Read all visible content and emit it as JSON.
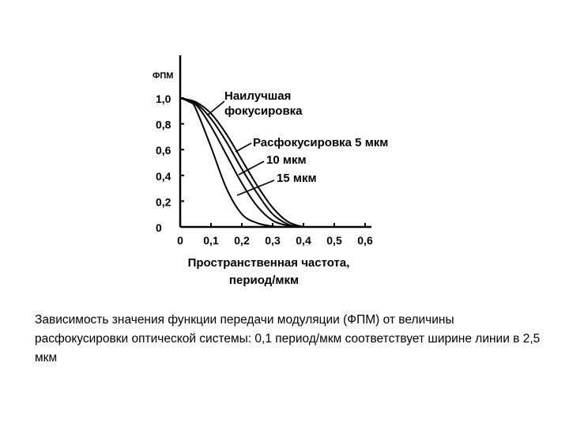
{
  "chart_data": {
    "type": "line",
    "ylabel": "ФПМ",
    "xlabel_line1": "Пространственная частота,",
    "xlabel_line2": "период/мкм",
    "xlim": [
      0,
      0.6
    ],
    "ylim": [
      0,
      1.0
    ],
    "x_ticks": [
      "0",
      "0,1",
      "0,2",
      "0,3",
      "0,4",
      "0,5",
      "0,6"
    ],
    "y_ticks": [
      "0",
      "0,2",
      "0,4",
      "0,6",
      "0,8",
      "1,0"
    ],
    "series": [
      {
        "name": "Наилучшая фокусировка",
        "x": [
          0,
          0.05,
          0.1,
          0.15,
          0.2,
          0.25,
          0.3,
          0.35,
          0.4
        ],
        "y": [
          1.0,
          0.97,
          0.88,
          0.72,
          0.52,
          0.32,
          0.15,
          0.04,
          0
        ]
      },
      {
        "name": "Расфокусировка 5 мкм",
        "x": [
          0,
          0.05,
          0.1,
          0.15,
          0.2,
          0.25,
          0.3,
          0.35,
          0.39
        ],
        "y": [
          1.0,
          0.96,
          0.84,
          0.66,
          0.45,
          0.26,
          0.1,
          0.02,
          0
        ]
      },
      {
        "name": "10 мкм",
        "x": [
          0,
          0.05,
          0.1,
          0.15,
          0.2,
          0.25,
          0.3,
          0.35,
          0.38
        ],
        "y": [
          1.0,
          0.95,
          0.78,
          0.56,
          0.34,
          0.16,
          0.05,
          0.01,
          0
        ]
      },
      {
        "name": "15 мкм",
        "x": [
          0,
          0.03,
          0.05,
          0.1,
          0.15,
          0.2,
          0.25,
          0.3,
          0.33
        ],
        "y": [
          1.0,
          0.97,
          0.92,
          0.62,
          0.3,
          0.1,
          0.03,
          0.005,
          0
        ]
      }
    ],
    "annotations": [
      {
        "text_lines": [
          "Наилучшая",
          "фокусировка"
        ],
        "series": 0
      },
      {
        "text_lines": [
          "Расфокусировка 5 мкм"
        ],
        "series": 1
      },
      {
        "text_lines": [
          "10 мкм"
        ],
        "series": 2
      },
      {
        "text_lines": [
          "15 мкм"
        ],
        "series": 3
      }
    ]
  },
  "caption": "Зависимость значения функции передачи модуляции (ФПМ) от величины расфокусировки оптической системы: 0,1 период/мкм соответствует ширине линии в 2,5 мкм"
}
